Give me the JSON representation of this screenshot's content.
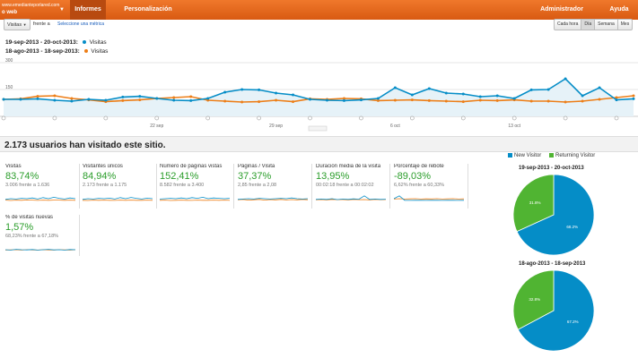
{
  "topbar": {
    "site_line1": "www.emedianteporlared.com",
    "site_line2": "o web",
    "tabs": [
      {
        "label": "Informes",
        "active": true
      },
      {
        "label": "Personalización",
        "active": false
      }
    ],
    "admin": "Administrador",
    "help": "Ayuda"
  },
  "controls": {
    "metric_select": "Visitas",
    "versus": "frente a",
    "select_link": "Seleccione una métrica",
    "granularity": [
      "Cada hora",
      "Día",
      "Semana",
      "Mes"
    ],
    "granularity_selected": "Día"
  },
  "legend": [
    {
      "range": "19-sep-2013 - 20-oct-2013:",
      "metric": "Visitas",
      "color": "#058dc7"
    },
    {
      "range": "18-ago-2013 - 18-sep-2013:",
      "metric": "Visitas",
      "color": "#ed7e17"
    }
  ],
  "chart_data": {
    "type": "line",
    "y_ticks": [
      "300",
      "150"
    ],
    "x_ticks": [
      "22 sep",
      "29 sep",
      "6 oct",
      "13 oct"
    ],
    "series": [
      {
        "name": "Visitas",
        "color": "#058dc7",
        "values": [
          95,
          95,
          98,
          90,
          85,
          95,
          90,
          108,
          112,
          100,
          90,
          88,
          100,
          135,
          150,
          148,
          130,
          120,
          95,
          90,
          88,
          92,
          100,
          160,
          120,
          155,
          130,
          125,
          110,
          115,
          100,
          148,
          150,
          210,
          115,
          160,
          92,
          98
        ]
      },
      {
        "name": "Visitas",
        "color": "#ed7e17",
        "values": [
          95,
          98,
          112,
          115,
          100,
          92,
          82,
          88,
          92,
          100,
          105,
          110,
          90,
          85,
          80,
          82,
          90,
          82,
          98,
          95,
          100,
          98,
          88,
          90,
          92,
          88,
          85,
          82,
          90,
          88,
          92,
          85,
          85,
          80,
          85,
          95,
          105,
          115
        ]
      }
    ]
  },
  "summary": {
    "total_text": "2.173 usuarios han visitado este sitio."
  },
  "metrics": [
    {
      "label": "Visitas",
      "value": "83,74%",
      "compare": "3.006 frente a 1.636"
    },
    {
      "label": "Visitantes únicos",
      "value": "84,94%",
      "compare": "2.173 frente a 1.175"
    },
    {
      "label": "Número de páginas vistas",
      "value": "152,41%",
      "compare": "8.582 frente a 3.400"
    },
    {
      "label": "Páginas / Visita",
      "value": "37,37%",
      "compare": "2,85 frente a 2,08"
    },
    {
      "label": "Duración media de la visita",
      "value": "13,95%",
      "compare": "00:02:18 frente a 00:02:02"
    },
    {
      "label": "Porcentaje de rebote",
      "value": "-89,03%",
      "compare": "6,62% frente a 60,33%"
    },
    {
      "label": "% de visitas nuevas",
      "value": "1,57%",
      "compare": "68,23% frente a 67,18%"
    }
  ],
  "pies": {
    "legend": [
      {
        "label": "New Visitor",
        "color": "#058dc7"
      },
      {
        "label": "Returning Visitor",
        "color": "#50b432"
      }
    ],
    "charts": [
      {
        "title": "19-sep-2013 - 20-oct-2013",
        "new": 68.2,
        "returning": 31.8,
        "new_label": "68.2%",
        "returning_label": "31.8%"
      },
      {
        "title": "18-ago-2013 - 18-sep-2013",
        "new": 67.2,
        "returning": 32.8,
        "new_label": "67.2%",
        "returning_label": "32.8%"
      }
    ]
  }
}
